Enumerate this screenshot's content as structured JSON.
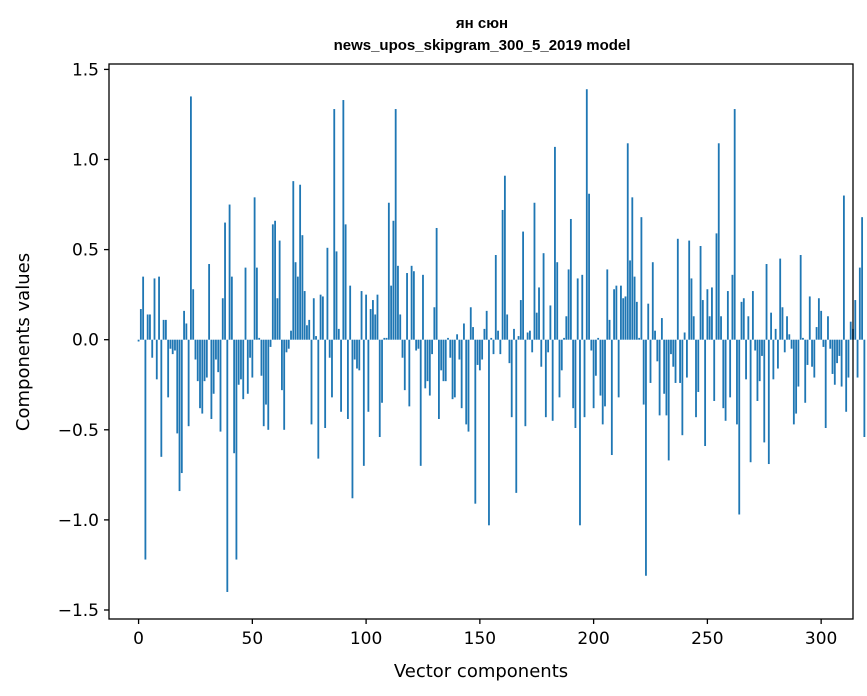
{
  "chart_data": {
    "type": "bar",
    "title_line1": "ян сюн",
    "title_line2": "news_upos_skipgram_300_5_2019 model",
    "xlabel": "Vector components",
    "ylabel": "Components values",
    "xlim": [
      -13,
      314
    ],
    "ylim": [
      -1.55,
      1.53
    ],
    "x_ticks": [
      0,
      50,
      100,
      150,
      200,
      250,
      300
    ],
    "x_tick_labels": [
      "0",
      "50",
      "100",
      "150",
      "200",
      "250",
      "300"
    ],
    "y_ticks": [
      -1.5,
      -1.0,
      -0.5,
      0.0,
      0.5,
      1.0,
      1.5
    ],
    "y_tick_labels": [
      "−1.5",
      "−1.0",
      "−0.5",
      "0.0",
      "0.5",
      "1.0",
      "1.5"
    ],
    "bar_color": "#1f77b4",
    "x_start": 0,
    "values": [
      -0.01,
      0.17,
      0.35,
      -1.22,
      0.14,
      0.14,
      -0.1,
      0.34,
      -0.22,
      0.35,
      -0.65,
      0.11,
      0.11,
      -0.32,
      -0.05,
      -0.08,
      -0.06,
      -0.52,
      -0.84,
      -0.74,
      0.16,
      0.09,
      -0.48,
      1.35,
      0.28,
      -0.11,
      -0.23,
      -0.38,
      -0.41,
      -0.23,
      -0.21,
      0.42,
      -0.44,
      -0.3,
      -0.11,
      -0.18,
      -0.51,
      0.23,
      0.65,
      -1.4,
      0.75,
      0.35,
      -0.63,
      -1.22,
      -0.25,
      -0.22,
      -0.33,
      0.4,
      -0.3,
      -0.1,
      -0.21,
      0.79,
      0.4,
      0.01,
      -0.2,
      -0.48,
      -0.36,
      -0.5,
      -0.04,
      0.64,
      0.66,
      0.23,
      0.55,
      -0.28,
      -0.5,
      -0.07,
      -0.05,
      0.05,
      0.88,
      0.43,
      0.35,
      0.86,
      0.58,
      0.27,
      0.08,
      0.11,
      -0.47,
      0.23,
      0.02,
      -0.66,
      0.25,
      0.24,
      -0.49,
      0.51,
      -0.1,
      -0.32,
      1.28,
      0.49,
      0.06,
      -0.4,
      1.33,
      0.64,
      -0.44,
      0.3,
      -0.88,
      -0.11,
      -0.16,
      -0.17,
      0.27,
      -0.7,
      0.25,
      -0.4,
      0.17,
      0.22,
      0.14,
      0.25,
      -0.54,
      -0.35,
      0.01,
      0.01,
      0.76,
      0.3,
      0.66,
      1.28,
      0.41,
      0.14,
      -0.1,
      -0.28,
      0.37,
      -0.37,
      0.41,
      0.38,
      -0.06,
      -0.05,
      -0.7,
      0.36,
      -0.27,
      -0.23,
      -0.31,
      -0.08,
      0.18,
      0.62,
      -0.44,
      -0.17,
      -0.23,
      -0.23,
      0.01,
      -0.1,
      -0.33,
      -0.32,
      0.03,
      -0.11,
      -0.38,
      0.09,
      -0.47,
      -0.51,
      0.18,
      0.07,
      -0.91,
      -0.14,
      -0.17,
      -0.11,
      0.06,
      0.16,
      -1.03,
      0.01,
      -0.08,
      0.47,
      0.05,
      -0.08,
      0.72,
      0.91,
      0.14,
      -0.13,
      -0.43,
      0.06,
      -0.85,
      0.02,
      0.22,
      0.6,
      -0.48,
      0.04,
      0.05,
      -0.07,
      0.76,
      0.15,
      0.29,
      -0.15,
      0.48,
      -0.43,
      -0.07,
      0.19,
      -0.45,
      1.07,
      0.43,
      -0.32,
      -0.17,
      0.01,
      0.13,
      0.39,
      0.67,
      -0.38,
      -0.49,
      0.34,
      -1.03,
      0.36,
      -0.43,
      1.39,
      0.81,
      -0.06,
      -0.38,
      -0.2,
      0.01,
      -0.31,
      -0.47,
      -0.37,
      0.39,
      0.11,
      -0.64,
      0.28,
      0.3,
      -0.32,
      0.3,
      0.23,
      0.24,
      1.09,
      0.44,
      0.79,
      0.35,
      0.21,
      0.01,
      0.68,
      -0.36,
      -1.31,
      0.2,
      -0.24,
      0.43,
      0.05,
      -0.12,
      -0.42,
      0.12,
      -0.3,
      -0.42,
      -0.67,
      -0.08,
      -0.15,
      -0.24,
      0.56,
      -0.24,
      -0.53,
      0.04,
      -0.21,
      0.55,
      0.34,
      0.13,
      -0.43,
      -0.29,
      0.52,
      0.22,
      -0.59,
      0.28,
      0.13,
      0.29,
      -0.34,
      0.59,
      1.09,
      0.13,
      -0.38,
      -0.45,
      0.27,
      -0.32,
      0.36,
      1.28,
      -0.47,
      -0.97,
      0.21,
      0.23,
      -0.22,
      0.13,
      -0.68,
      0.27,
      -0.06,
      -0.34,
      -0.23,
      -0.09,
      -0.57,
      0.42,
      -0.69,
      0.15,
      -0.22,
      0.06,
      -0.16,
      0.45,
      0.18,
      -0.07,
      0.13,
      0.03,
      -0.05,
      -0.47,
      -0.41,
      -0.26,
      0.47,
      0.01,
      -0.35,
      -0.14,
      0.24,
      -0.15,
      -0.21,
      0.07,
      0.23,
      0.16,
      -0.04,
      -0.49,
      0.13,
      -0.05,
      -0.19,
      -0.25,
      -0.13,
      -0.09,
      -0.26,
      0.8,
      -0.4,
      -0.21,
      0.1,
      0.06,
      0.22,
      -0.21,
      0.4,
      0.68,
      -0.54
    ]
  }
}
